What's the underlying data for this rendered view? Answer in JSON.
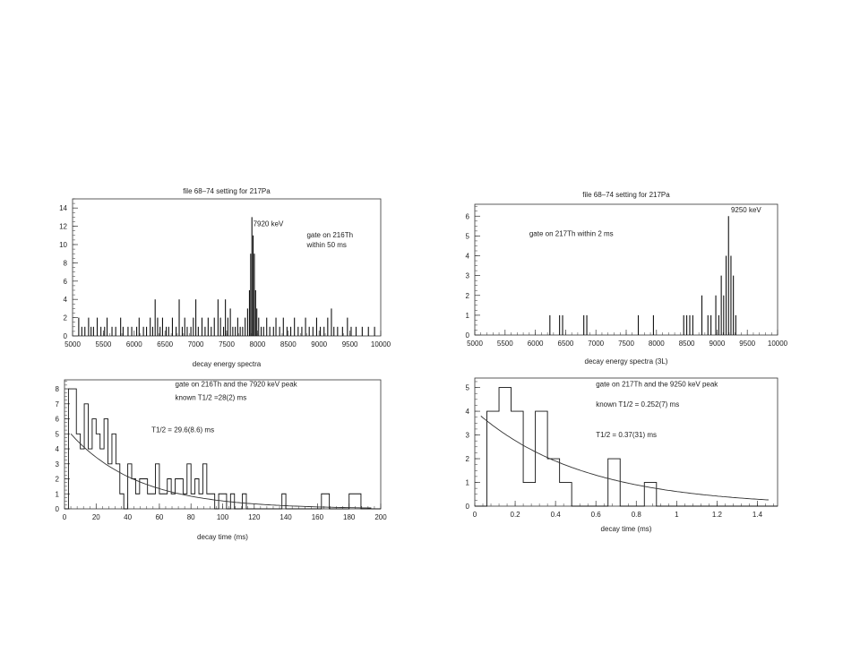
{
  "chart_data": [
    {
      "type": "bar",
      "title": "file 68–74 setting for 217Pa",
      "xlabel": "decay energy spectra",
      "ylabel": "",
      "xlim": [
        5000,
        10000
      ],
      "ylim": [
        0,
        15
      ],
      "xticks": [
        5000,
        5500,
        6000,
        6500,
        7000,
        7500,
        8000,
        8500,
        9000,
        9500,
        10000
      ],
      "yticks": [
        0,
        2,
        4,
        6,
        8,
        10,
        12,
        14
      ],
      "annotations": [
        {
          "text": "7920 keV",
          "x": 7930,
          "y": 12.0
        },
        {
          "text": "gate on 216Th",
          "x": 8800,
          "y": 10.8
        },
        {
          "text": "within 50 ms",
          "x": 8800,
          "y": 9.7
        }
      ],
      "bins": [
        [
          5100,
          2
        ],
        [
          5150,
          1
        ],
        [
          5200,
          1
        ],
        [
          5260,
          2
        ],
        [
          5300,
          1
        ],
        [
          5340,
          1
        ],
        [
          5400,
          2
        ],
        [
          5460,
          1
        ],
        [
          5520,
          1
        ],
        [
          5560,
          2
        ],
        [
          5640,
          1
        ],
        [
          5700,
          1
        ],
        [
          5780,
          2
        ],
        [
          5820,
          1
        ],
        [
          5900,
          1
        ],
        [
          5960,
          1
        ],
        [
          6040,
          1
        ],
        [
          6080,
          2
        ],
        [
          6150,
          1
        ],
        [
          6200,
          1
        ],
        [
          6260,
          2
        ],
        [
          6300,
          1
        ],
        [
          6340,
          4
        ],
        [
          6380,
          2
        ],
        [
          6420,
          1
        ],
        [
          6460,
          2
        ],
        [
          6520,
          1
        ],
        [
          6560,
          1
        ],
        [
          6620,
          2
        ],
        [
          6680,
          1
        ],
        [
          6730,
          4
        ],
        [
          6780,
          1
        ],
        [
          6820,
          2
        ],
        [
          6860,
          1
        ],
        [
          6920,
          1
        ],
        [
          6960,
          2
        ],
        [
          7000,
          4
        ],
        [
          7040,
          1
        ],
        [
          7100,
          2
        ],
        [
          7150,
          1
        ],
        [
          7200,
          2
        ],
        [
          7250,
          1
        ],
        [
          7300,
          2
        ],
        [
          7360,
          4
        ],
        [
          7400,
          2
        ],
        [
          7450,
          1
        ],
        [
          7480,
          4
        ],
        [
          7520,
          2
        ],
        [
          7560,
          3
        ],
        [
          7600,
          1
        ],
        [
          7640,
          1
        ],
        [
          7680,
          2
        ],
        [
          7720,
          1
        ],
        [
          7760,
          1
        ],
        [
          7800,
          2
        ],
        [
          7840,
          3
        ],
        [
          7870,
          5
        ],
        [
          7890,
          9
        ],
        [
          7910,
          13
        ],
        [
          7930,
          11
        ],
        [
          7950,
          9
        ],
        [
          7970,
          5
        ],
        [
          7990,
          3
        ],
        [
          8020,
          2
        ],
        [
          8060,
          1
        ],
        [
          8100,
          1
        ],
        [
          8150,
          2
        ],
        [
          8200,
          1
        ],
        [
          8260,
          1
        ],
        [
          8300,
          2
        ],
        [
          8360,
          1
        ],
        [
          8420,
          2
        ],
        [
          8480,
          1
        ],
        [
          8540,
          1
        ],
        [
          8600,
          2
        ],
        [
          8660,
          1
        ],
        [
          8720,
          1
        ],
        [
          8780,
          2
        ],
        [
          8840,
          1
        ],
        [
          8900,
          1
        ],
        [
          8960,
          2
        ],
        [
          9020,
          1
        ],
        [
          9080,
          1
        ],
        [
          9140,
          2
        ],
        [
          9200,
          3
        ],
        [
          9240,
          1
        ],
        [
          9300,
          1
        ],
        [
          9380,
          1
        ],
        [
          9460,
          2
        ],
        [
          9520,
          1
        ],
        [
          9600,
          1
        ],
        [
          9700,
          1
        ],
        [
          9800,
          1
        ],
        [
          9900,
          1
        ]
      ]
    },
    {
      "type": "bar",
      "title": "file 68–74 setting for 217Pa",
      "xlabel": "decay energy spectra (3L)",
      "ylabel": "",
      "xlim": [
        5000,
        10000
      ],
      "ylim": [
        0,
        6.6
      ],
      "xticks": [
        5000,
        5500,
        6000,
        6500,
        7000,
        7500,
        8000,
        8500,
        9000,
        9500,
        10000
      ],
      "yticks": [
        0,
        1,
        2,
        3,
        4,
        5,
        6
      ],
      "annotations": [
        {
          "text": "9250 keV",
          "x": 9230,
          "y": 6.2
        },
        {
          "text": "gate on 217Th within 2 ms",
          "x": 5900,
          "y": 5.0
        }
      ],
      "bins": [
        [
          6240,
          1
        ],
        [
          6400,
          1
        ],
        [
          6450,
          1
        ],
        [
          6800,
          1
        ],
        [
          6850,
          1
        ],
        [
          7700,
          1
        ],
        [
          7950,
          1
        ],
        [
          8450,
          1
        ],
        [
          8500,
          1
        ],
        [
          8550,
          1
        ],
        [
          8600,
          1
        ],
        [
          8750,
          2
        ],
        [
          8850,
          1
        ],
        [
          8900,
          1
        ],
        [
          8980,
          2
        ],
        [
          9030,
          1
        ],
        [
          9070,
          3
        ],
        [
          9110,
          2
        ],
        [
          9150,
          4
        ],
        [
          9190,
          6
        ],
        [
          9230,
          4
        ],
        [
          9270,
          3
        ],
        [
          9310,
          1
        ]
      ]
    },
    {
      "type": "bar",
      "title": "",
      "xlabel": "decay time (ms)",
      "ylabel": "",
      "xlim": [
        0,
        200
      ],
      "ylim": [
        0,
        8.6
      ],
      "xticks": [
        20,
        40,
        60,
        80,
        100,
        120,
        140,
        160,
        180,
        200
      ],
      "xtick_zero_label": "0",
      "yticks": [
        0,
        1,
        2,
        3,
        4,
        5,
        6,
        7,
        8
      ],
      "bin_width": 2.5,
      "annotations": [
        {
          "text": "gate on 216Th and the 7920 keV peak",
          "x": 70,
          "y": 8.15
        },
        {
          "text": "known T1/2 =28(2) ms",
          "x": 70,
          "y": 7.25
        },
        {
          "text": "T1/2 = 29.6(8.6) ms",
          "x": 55,
          "y": 5.1
        }
      ],
      "fit": {
        "amplitude": 5.0,
        "halflife": 29.6
      },
      "values": [
        0,
        8,
        8,
        5,
        4,
        7,
        4,
        6,
        5,
        4,
        6,
        3,
        5,
        3,
        1,
        0,
        3,
        2,
        1,
        2,
        2,
        1,
        1,
        3,
        1,
        1,
        2,
        1,
        2,
        2,
        1,
        3,
        1,
        2,
        1,
        3,
        1,
        1,
        0,
        1,
        1,
        0,
        1,
        0,
        0,
        1,
        0,
        0,
        0,
        0,
        0,
        0,
        0,
        0,
        0,
        1,
        0,
        0,
        0,
        0,
        0,
        0,
        0,
        0,
        0,
        1,
        1,
        0,
        0,
        0,
        0,
        0,
        1,
        1,
        1,
        0,
        0,
        0,
        0,
        0
      ]
    },
    {
      "type": "bar",
      "title": "",
      "xlabel": "decay time (ms)",
      "ylabel": "",
      "xlim": [
        0,
        1.5
      ],
      "ylim": [
        0,
        5.4
      ],
      "xticks": [
        0.2,
        0.4,
        0.6,
        0.8,
        1,
        1.2,
        1.4
      ],
      "xtick_zero_label": "0",
      "yticks": [
        0,
        1,
        2,
        3,
        4,
        5
      ],
      "bin_width": 0.06,
      "annotations": [
        {
          "text": "gate on 217Th and the 9250 keV peak",
          "x": 0.6,
          "y": 5.05
        },
        {
          "text": "known  T1/2 = 0.252(7) ms",
          "x": 0.6,
          "y": 4.2
        },
        {
          "text": "T1/2 = 0.37(31) ms",
          "x": 0.6,
          "y": 2.9
        }
      ],
      "fit": {
        "amplitude": 3.8,
        "halflife": 0.37
      },
      "values": [
        0,
        4,
        5,
        4,
        1,
        4,
        2,
        1,
        0,
        0,
        0,
        2,
        0,
        0,
        1,
        0,
        0,
        0,
        0,
        0,
        0,
        0,
        0,
        0,
        0
      ]
    }
  ]
}
